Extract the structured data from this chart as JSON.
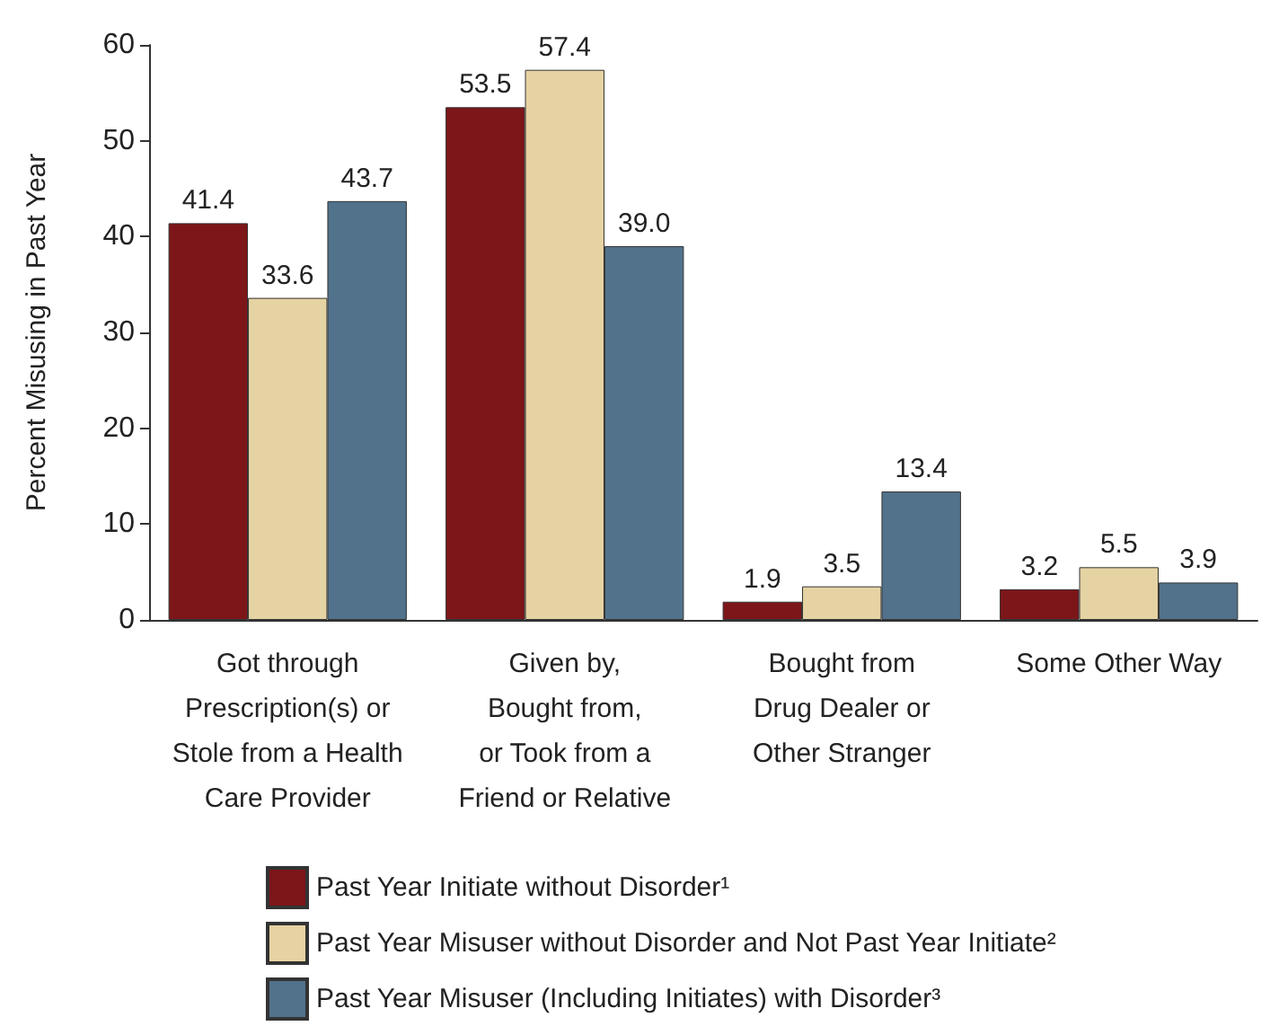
{
  "chart_data": {
    "type": "bar",
    "ylabel": "Percent Misusing in Past Year",
    "categories": [
      "Got through\nPrescription(s) or\nStole from a Health\nCare Provider",
      "Given by,\nBought from,\nor Took from a\nFriend or Relative",
      "Bought from\nDrug Dealer or\nOther Stranger",
      "Some Other Way"
    ],
    "series": [
      {
        "name": "Past Year Initiate without Disorder¹",
        "color": "#7d1619",
        "values": [
          41.4,
          53.5,
          1.9,
          3.2
        ],
        "value_labels": [
          "41.4",
          "53.5",
          "1.9",
          "3.2"
        ]
      },
      {
        "name": "Past Year Misuser without Disorder and Not Past Year Initiate²",
        "color": "#e6d3a3",
        "values": [
          33.6,
          57.4,
          3.5,
          5.5
        ],
        "value_labels": [
          "33.6",
          "57.4",
          "3.5",
          "5.5"
        ]
      },
      {
        "name": "Past Year Misuser (Including Initiates) with Disorder³",
        "color": "#52728b",
        "values": [
          43.7,
          39.0,
          13.4,
          3.9
        ],
        "value_labels": [
          "43.7",
          "39.0",
          "13.4",
          "3.9"
        ]
      }
    ],
    "ylim": [
      0,
      60
    ],
    "yticks": [
      0,
      10,
      20,
      30,
      40,
      50,
      60
    ],
    "grid": false,
    "legend": "bottom"
  }
}
